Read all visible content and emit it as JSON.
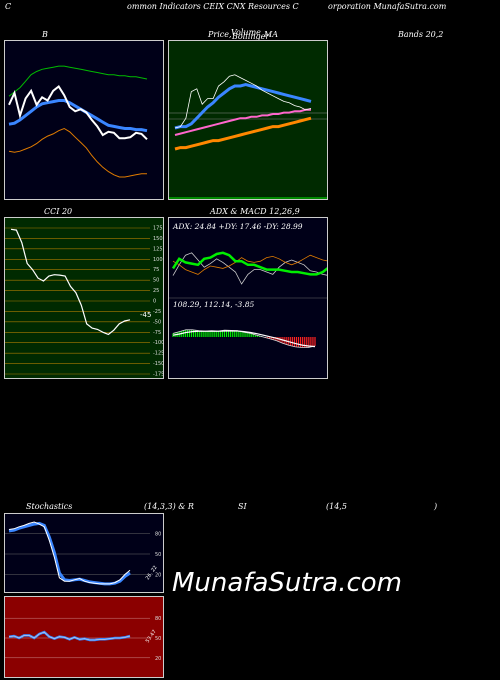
{
  "header": {
    "c1": "C",
    "c2": "ommon  Indicators CEIX  CNX  Resources C",
    "c3": "orporation  MunafaSutra.com"
  },
  "titles": {
    "bb_b": "B",
    "price_a": "Price,",
    "price_b": "Volume",
    "price_c": "Bollinger",
    "price_d": "MA",
    "bands": "Bands 20,2",
    "cci": "CCI 20",
    "adx": "ADX  & MACD 12,26,9",
    "stoch": "Stochastics",
    "stoch_params": "(14,3,3) & R",
    "rsi": "SI",
    "rsi_params": "(14,5",
    "rsi_close": ")"
  },
  "adx_readout": "ADX: 24.84  +DY: 17.46  -DY: 28.99",
  "macd_readout": "108.29,  112.14,  -3.85",
  "cci_ticks": [
    "175",
    "150",
    "125",
    "100",
    "75",
    "50",
    "25",
    "0",
    "-25",
    "-50",
    "-75",
    "-100",
    "-125",
    "-150",
    "-175"
  ],
  "cci_value_label": "-45",
  "stoch_ticks": [
    "80",
    "50",
    "20"
  ],
  "stoch_value_label": "26, 22",
  "rsi_ticks": [
    "80",
    "50",
    "20"
  ],
  "rsi_value_label": "53.47",
  "watermark": "MunafaSutra.com",
  "colors": {
    "price_bg": "#002a00",
    "cci_bg": "#002a00",
    "rsi_bg": "#8b0000",
    "blue": "#3a86ff",
    "orange": "#e07b00",
    "green": "#00cc00",
    "red": "#ff2222"
  },
  "chart_data": [
    {
      "type": "line",
      "name": "Bollinger Bands 20,2",
      "series": [
        {
          "values": [
            88,
            92,
            96,
            102,
            108,
            111,
            113,
            114,
            115,
            116,
            116,
            115,
            114,
            113,
            112,
            111,
            110,
            109,
            108,
            108,
            107,
            107,
            106,
            106,
            105,
            104
          ]
        },
        {
          "values": [
            62,
            63,
            66,
            70,
            74,
            78,
            81,
            82,
            83,
            84,
            84,
            82,
            79,
            76,
            73,
            70,
            67,
            64,
            61,
            60,
            59,
            58,
            58,
            57,
            57,
            56
          ]
        },
        {
          "values": [
            37,
            36,
            37,
            39,
            41,
            44,
            48,
            51,
            53,
            56,
            58,
            55,
            50,
            45,
            40,
            33,
            27,
            22,
            18,
            15,
            13,
            13,
            14,
            15,
            16,
            16
          ]
        },
        {
          "values": [
            80,
            91,
            70,
            86,
            93,
            80,
            87,
            84,
            93,
            97,
            89,
            78,
            74,
            76,
            73,
            66,
            60,
            52,
            55,
            54,
            49,
            49,
            50,
            54,
            53,
            48
          ]
        }
      ]
    },
    {
      "type": "line",
      "name": "Price, Bollinger, Volume, MA",
      "series": [
        {
          "values": [
            45,
            46,
            52,
            71,
            73,
            62,
            66,
            66,
            75,
            78,
            82,
            83,
            81,
            79,
            77,
            75,
            72,
            70,
            68,
            66,
            64,
            63,
            61,
            60,
            58,
            59
          ]
        },
        {
          "values": [
            45,
            46,
            46,
            48,
            52,
            56,
            60,
            63,
            67,
            70,
            73,
            75,
            75,
            76,
            75,
            74,
            73,
            72,
            71,
            70,
            69,
            68,
            67,
            66,
            65,
            64
          ]
        },
        {
          "values": [
            40,
            41,
            42,
            43,
            44,
            45,
            46,
            47,
            48,
            49,
            50,
            51,
            52,
            52,
            53,
            53,
            54,
            54,
            55,
            55,
            56,
            56,
            57,
            57,
            58,
            58
          ]
        },
        {
          "values": [
            30,
            31,
            31,
            32,
            33,
            34,
            35,
            36,
            36,
            37,
            38,
            39,
            40,
            41,
            42,
            43,
            44,
            45,
            46,
            46,
            47,
            48,
            49,
            50,
            51,
            52
          ]
        }
      ]
    },
    {
      "type": "line",
      "name": "CCI 20",
      "ylim": [
        -175,
        175
      ],
      "series": [
        {
          "values": [
            172,
            170,
            140,
            90,
            75,
            55,
            48,
            60,
            63,
            62,
            60,
            35,
            20,
            -10,
            -55,
            -65,
            -68,
            -75,
            -80,
            -70,
            -55,
            -48,
            -45
          ]
        }
      ]
    },
    {
      "type": "line",
      "name": "ADX",
      "series": [
        {
          "values": [
            23,
            31,
            28,
            27,
            26,
            31,
            32,
            35,
            36,
            34,
            29,
            29,
            26,
            26,
            24,
            22,
            22,
            22,
            21,
            20,
            20,
            19,
            18,
            18,
            20,
            24
          ]
        },
        {
          "values": [
            17,
            26,
            34,
            36,
            30,
            24,
            27,
            31,
            28,
            24,
            20,
            10,
            18,
            22,
            22,
            20,
            18,
            24,
            28,
            30,
            28,
            26,
            21,
            20,
            18,
            17
          ]
        },
        {
          "values": [
            29,
            26,
            22,
            20,
            18,
            22,
            25,
            24,
            23,
            25,
            28,
            32,
            29,
            28,
            29,
            32,
            33,
            31,
            28,
            26,
            28,
            31,
            34,
            32,
            30,
            29
          ]
        }
      ]
    },
    {
      "type": "line",
      "name": "MACD 12,26,9",
      "series": [
        {
          "values": [
            1.2,
            1.8,
            2.4,
            2.4,
            2.1,
            2.0,
            2.1,
            2.0,
            2.3,
            2.2,
            2.1,
            1.6,
            1.2,
            0.6,
            0.0,
            -0.6,
            -1.2,
            -2.1,
            -2.8,
            -3.3,
            -3.5,
            -3.5,
            -3.0
          ]
        },
        {
          "values": [
            0.6,
            1.0,
            1.5,
            1.8,
            1.9,
            1.9,
            1.9,
            1.9,
            2.0,
            2.0,
            2.0,
            1.8,
            1.5,
            1.1,
            0.6,
            0.1,
            -0.4,
            -1.0,
            -1.6,
            -2.2,
            -2.7,
            -3.0,
            -3.2
          ]
        }
      ]
    },
    {
      "type": "line",
      "name": "Stochastics 14,3,3",
      "ylim": [
        0,
        100
      ],
      "series": [
        {
          "values": [
            86,
            87,
            90,
            92,
            95,
            97,
            94,
            90,
            70,
            45,
            15,
            10,
            10,
            12,
            14,
            10,
            8,
            7,
            6,
            6,
            6,
            8,
            12,
            20,
            26
          ]
        },
        {
          "values": [
            84,
            85,
            88,
            90,
            92,
            94,
            95,
            92,
            75,
            52,
            22,
            12,
            11,
            12,
            13,
            11,
            9,
            8,
            7,
            6,
            6,
            7,
            10,
            17,
            22
          ]
        }
      ]
    },
    {
      "type": "line",
      "name": "RSI 14,5",
      "ylim": [
        0,
        100
      ],
      "series": [
        {
          "values": [
            52,
            53,
            50,
            54,
            54,
            50,
            56,
            59,
            52,
            49,
            52,
            51,
            48,
            51,
            48,
            49,
            47,
            47,
            48,
            48,
            49,
            50,
            50,
            51,
            53
          ]
        }
      ]
    }
  ]
}
